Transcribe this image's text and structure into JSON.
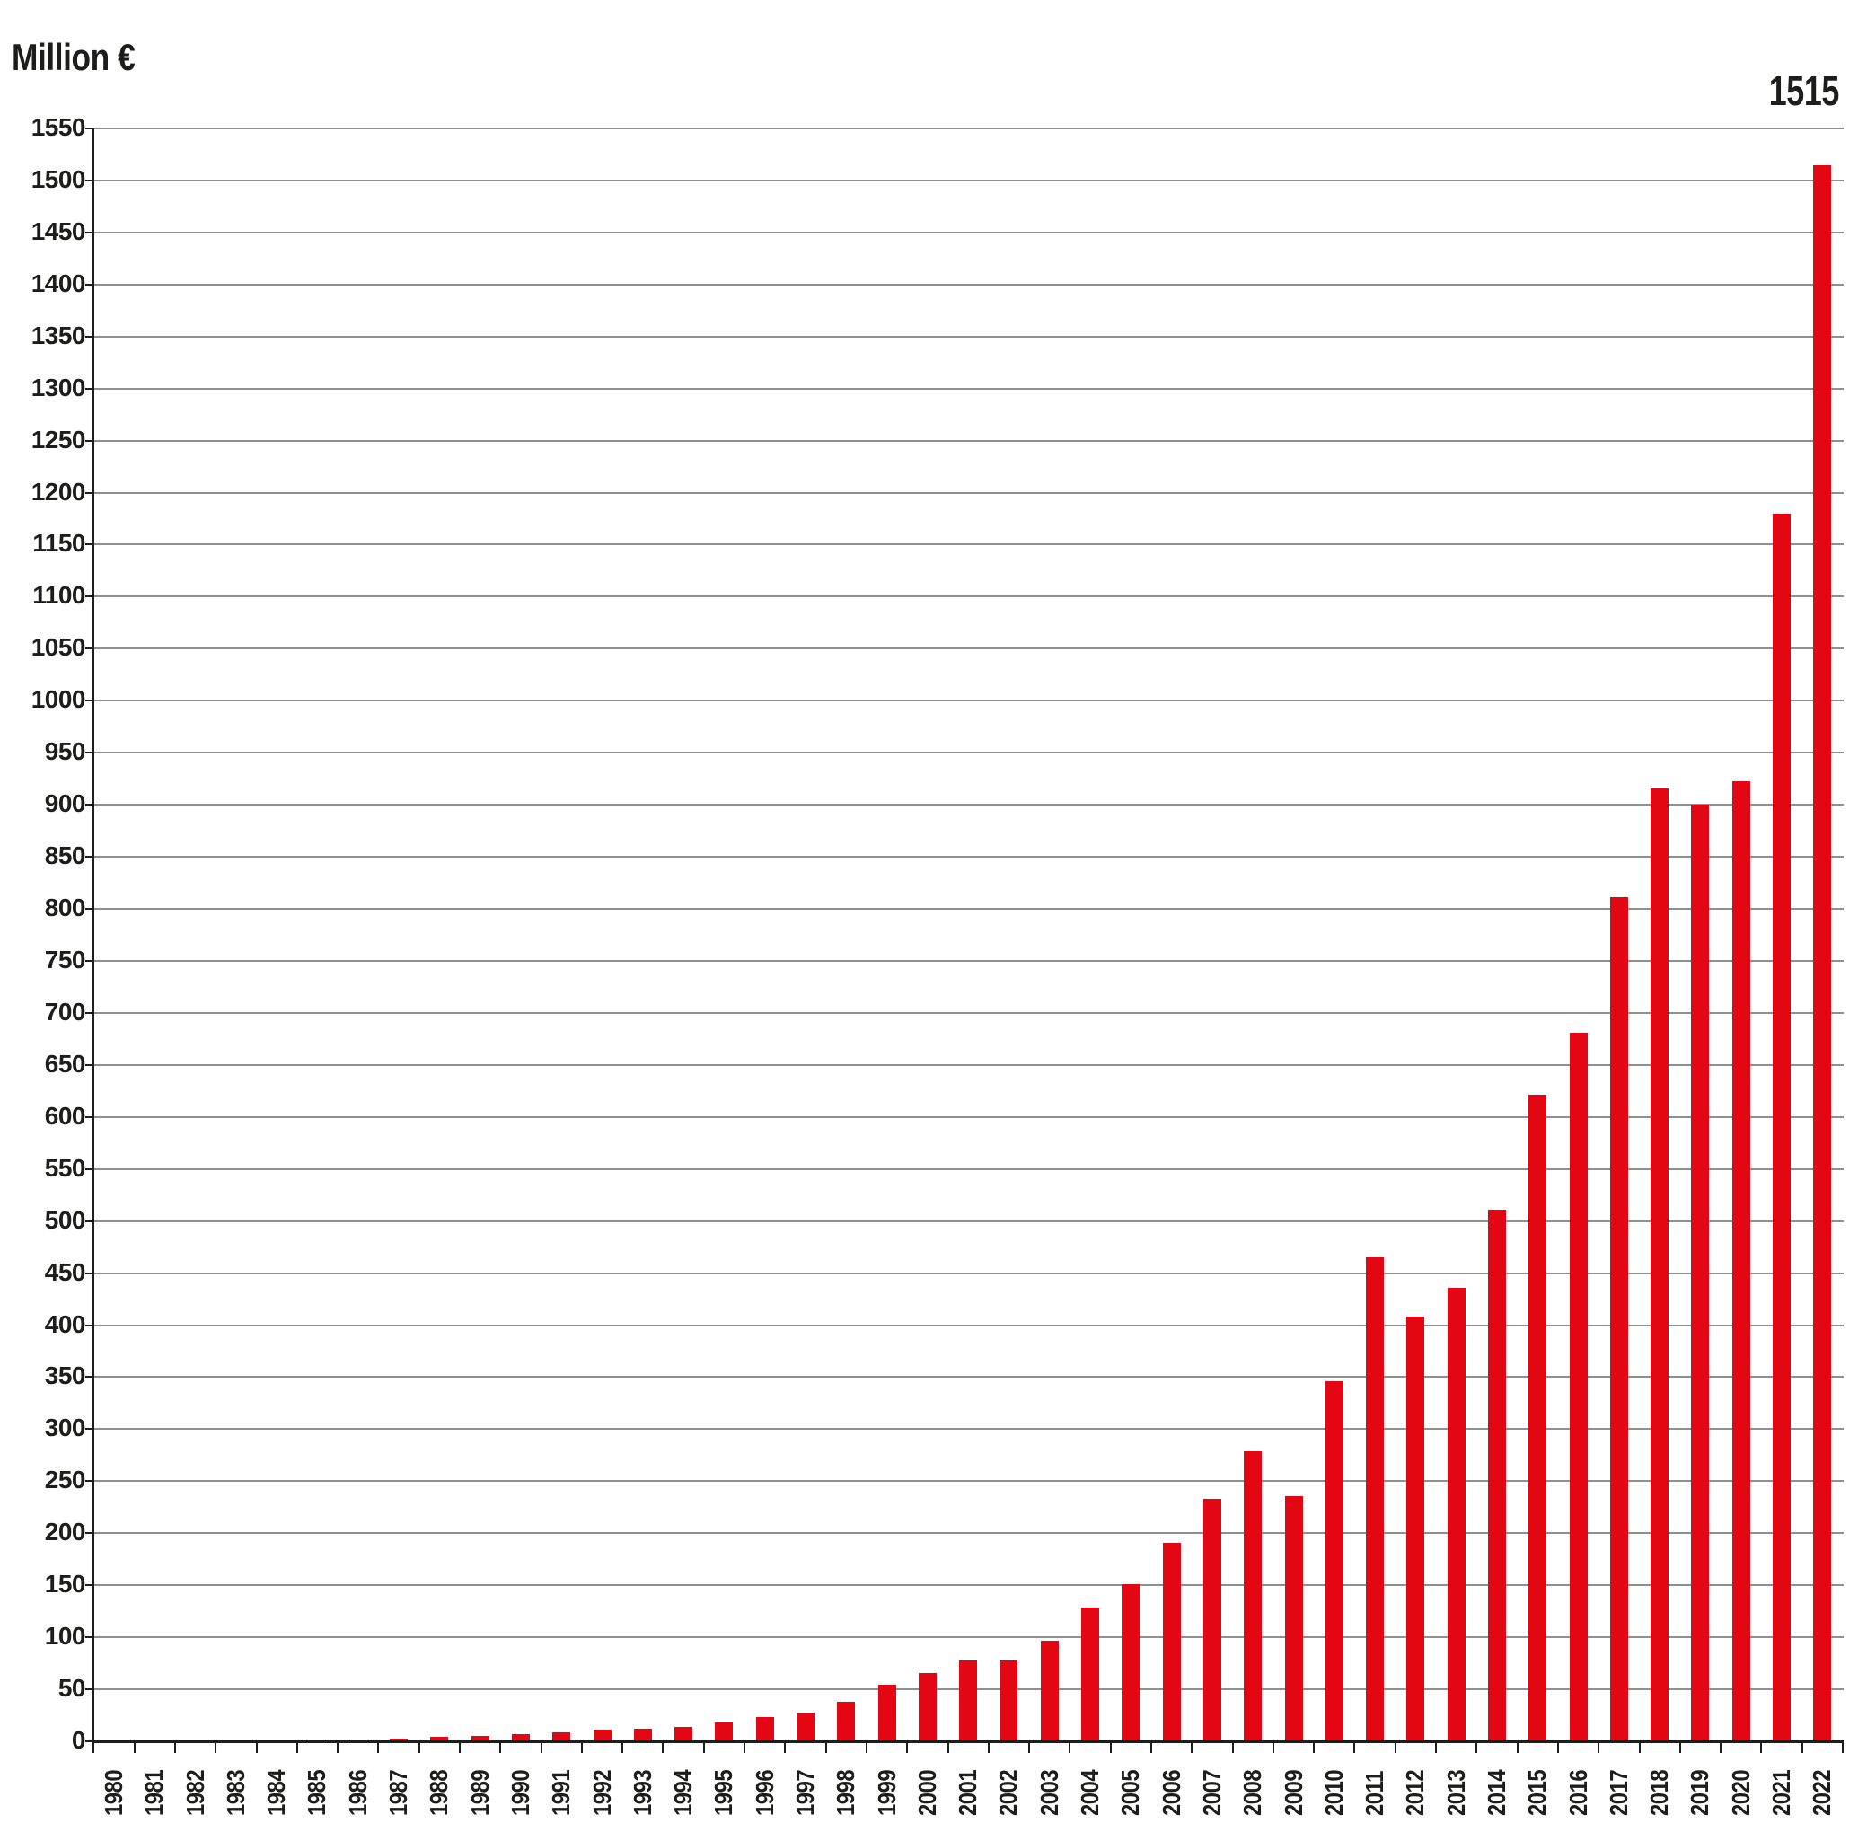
{
  "title": "Million €",
  "peak_annotation": "1515",
  "colors": {
    "bar": "#e30613",
    "grid": "#8f8f8f",
    "axis": "#1d1d1b",
    "text": "#1d1d1b",
    "background": "#ffffff"
  },
  "chart_data": {
    "type": "bar",
    "title": "Million €",
    "xlabel": "",
    "ylabel": "Million €",
    "categories": [
      "1980",
      "1981",
      "1982",
      "1983",
      "1984",
      "1985",
      "1986",
      "1987",
      "1988",
      "1989",
      "1990",
      "1991",
      "1992",
      "1993",
      "1994",
      "1995",
      "1996",
      "1997",
      "1998",
      "1999",
      "2000",
      "2001",
      "2002",
      "2003",
      "2004",
      "2005",
      "2006",
      "2007",
      "2008",
      "2009",
      "2010",
      "2011",
      "2012",
      "2013",
      "2014",
      "2015",
      "2016",
      "2017",
      "2018",
      "2019",
      "2020",
      "2021",
      "2022"
    ],
    "values": [
      0.2,
      0.3,
      0.4,
      0.7,
      1,
      1.5,
      2,
      3,
      4,
      5.5,
      7,
      9,
      11,
      12,
      14,
      18,
      23,
      28,
      38,
      54,
      66,
      78,
      78,
      97,
      129,
      151,
      191,
      233,
      279,
      236,
      346,
      465,
      408,
      436,
      511,
      621,
      681,
      811,
      916,
      900,
      923,
      1180,
      1515
    ],
    "ylim": [
      0,
      1550
    ],
    "ytick_step": 50,
    "yticks": [
      0,
      50,
      100,
      150,
      200,
      250,
      300,
      350,
      400,
      450,
      500,
      550,
      600,
      650,
      700,
      750,
      800,
      850,
      900,
      950,
      1000,
      1050,
      1100,
      1150,
      1200,
      1250,
      1300,
      1350,
      1400,
      1450,
      1500,
      1550
    ],
    "grid": true,
    "legend": "none",
    "bar_color": "#e30613",
    "annotations": [
      {
        "category": "2022",
        "text": "1515"
      }
    ]
  }
}
